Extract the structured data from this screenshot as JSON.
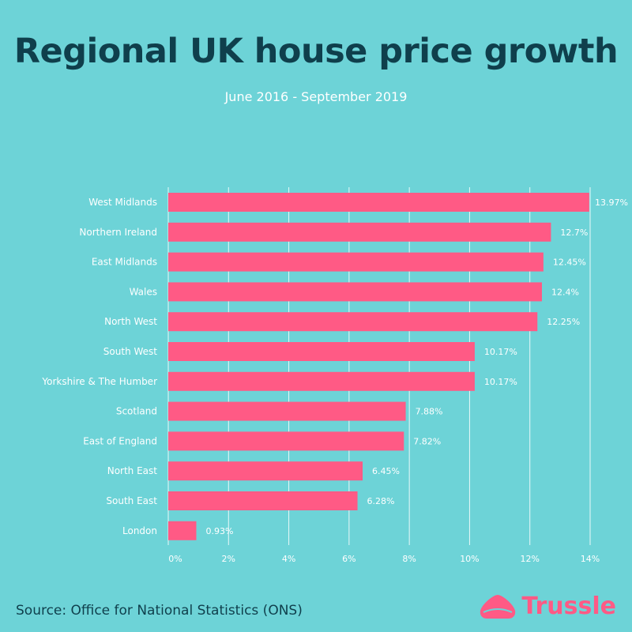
{
  "title": "Regional UK house price growth",
  "subtitle": "June 2016 - September 2019",
  "source": "Source: Office for National Statistics (ONS)",
  "brand": {
    "name": "Trussle",
    "icon": "trussle-logo-icon",
    "color": "#ff5a85"
  },
  "colors": {
    "background": "#6dd3d7",
    "bar": "#ff5a85",
    "title": "#0f3f4c",
    "text": "#ffffff"
  },
  "chart_data": {
    "type": "bar",
    "orientation": "horizontal",
    "categories": [
      "West Midlands",
      "Northern Ireland",
      "East Midlands",
      "Wales",
      "North West",
      "South West",
      "Yorkshire & The Humber",
      "Scotland",
      "East of England",
      "North East",
      "South East",
      "London"
    ],
    "values": [
      13.97,
      12.7,
      12.45,
      12.4,
      12.25,
      10.17,
      10.17,
      7.88,
      7.82,
      6.45,
      6.28,
      0.93
    ],
    "value_labels": [
      "13.97%",
      "12.7%",
      "12.45%",
      "12.4%",
      "12.25%",
      "10.17%",
      "10.17%",
      "7.88%",
      "7.82%",
      "6.45%",
      "6.28%",
      "0.93%"
    ],
    "x_ticks": [
      0,
      2,
      4,
      6,
      8,
      10,
      12,
      14
    ],
    "x_tick_labels": [
      "0%",
      "2%",
      "4%",
      "6%",
      "8%",
      "10%",
      "12%",
      "14%"
    ],
    "xlim": [
      0,
      14
    ],
    "grid": true
  }
}
